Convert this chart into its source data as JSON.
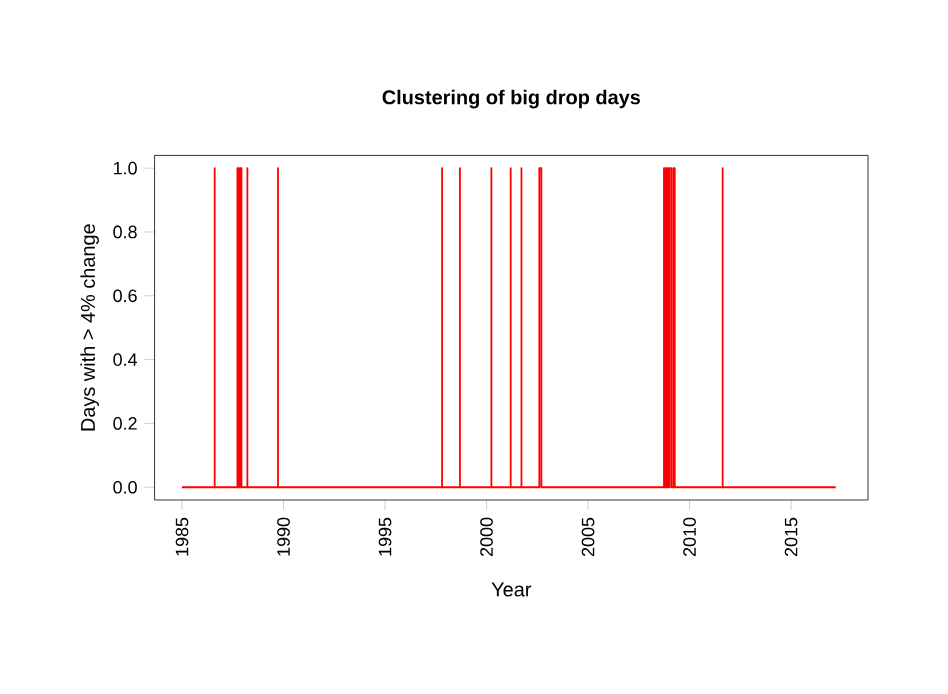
{
  "chart_data": {
    "type": "line",
    "title": "Clustering of big drop days",
    "xlabel": "Year",
    "ylabel": "Days with > 4% change",
    "x": [
      1985.0,
      1986.61,
      1986.61,
      1986.61,
      1987.73,
      1987.73,
      1987.8,
      1987.8,
      1987.86,
      1987.86,
      1987.93,
      1987.93,
      1988.22,
      1988.22,
      1988.22,
      1989.73,
      1989.73,
      1989.73,
      1997.81,
      1997.81,
      1997.81,
      1998.69,
      1998.69,
      1998.69,
      2000.24,
      2000.24,
      2000.24,
      2001.19,
      2001.19,
      2001.19,
      2001.72,
      2001.72,
      2001.72,
      2002.6,
      2002.6,
      2002.7,
      2002.7,
      2008.74,
      2008.74,
      2008.8,
      2008.8,
      2008.86,
      2008.86,
      2008.92,
      2008.92,
      2009.0,
      2009.0,
      2009.1,
      2009.1,
      2009.2,
      2009.2,
      2009.27,
      2009.27,
      2011.63,
      2011.63,
      2011.63,
      2017.2
    ],
    "series": [
      {
        "color": "#ff0000",
        "values": [
          0,
          0,
          1,
          0,
          0,
          1,
          1,
          0,
          0,
          1,
          1,
          0,
          0,
          1,
          0,
          0,
          1,
          0,
          0,
          1,
          0,
          0,
          1,
          0,
          0,
          1,
          0,
          0,
          1,
          0,
          0,
          1,
          0,
          0,
          1,
          1,
          0,
          0,
          1,
          1,
          0,
          0,
          1,
          1,
          0,
          0,
          1,
          1,
          0,
          0,
          1,
          1,
          0,
          0,
          1,
          0,
          0
        ]
      }
    ],
    "xlim": [
      1983.65,
      2018.79
    ],
    "ylim": [
      -0.04,
      1.04
    ],
    "xticks": [
      1985,
      1990,
      1995,
      2000,
      2005,
      2010,
      2015
    ],
    "yticks": [
      {
        "value": 0,
        "label": "0.0"
      },
      {
        "value": 0.2,
        "label": "0.2"
      },
      {
        "value": 0.4,
        "label": "0.4"
      },
      {
        "value": 0.6,
        "label": "0.6"
      },
      {
        "value": 0.8,
        "label": "0.8"
      },
      {
        "value": 1,
        "label": "1.0"
      }
    ]
  }
}
